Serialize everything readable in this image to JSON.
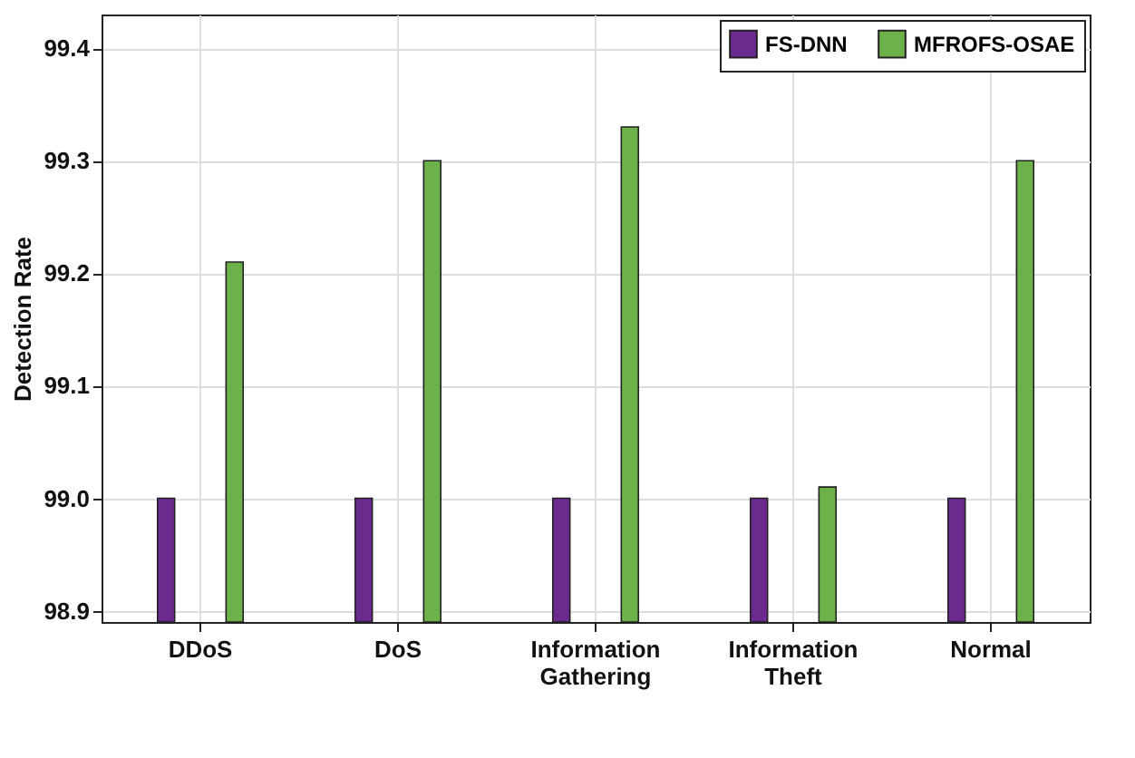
{
  "chart_data": {
    "type": "bar",
    "ylabel": "Detection Rate",
    "categories": [
      "DDoS",
      "DoS",
      "Information Gathering",
      "Information Theft",
      "Normal"
    ],
    "series": [
      {
        "name": "FS-DNN",
        "color": "#6b2a8e",
        "values": [
          99.0,
          99.0,
          99.0,
          99.0,
          99.0
        ]
      },
      {
        "name": "MFROFS-OSAE",
        "color": "#6db14a",
        "values": [
          99.21,
          99.3,
          99.33,
          99.01,
          99.3
        ]
      }
    ],
    "ylim": [
      98.89,
      99.43
    ],
    "yticks": [
      98.9,
      {
        "value": 99,
        "label": "99.0"
      },
      99.1,
      99.2,
      99.3,
      99.4
    ],
    "grid": true,
    "legend": "top right"
  }
}
